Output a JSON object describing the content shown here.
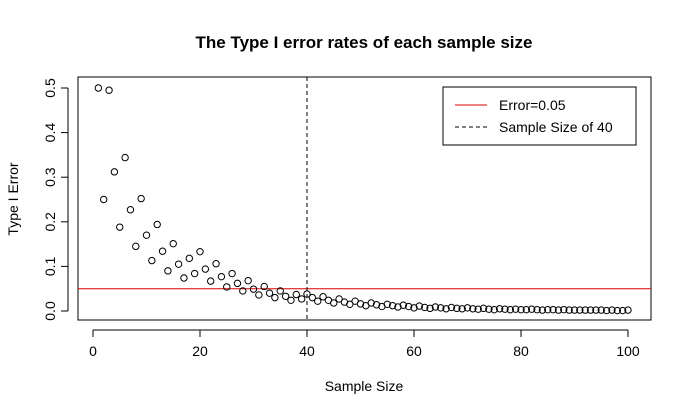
{
  "chart_data": {
    "type": "scatter",
    "title": "The Type I error rates of each sample size",
    "xlabel": "Sample Size",
    "ylabel": "Type I Error",
    "xlim": [
      0,
      100
    ],
    "ylim": [
      0,
      0.5
    ],
    "x_ticks": [
      0,
      20,
      40,
      60,
      80,
      100
    ],
    "y_ticks": [
      0.0,
      0.1,
      0.2,
      0.3,
      0.4,
      0.5
    ],
    "x_tick_labels": [
      "0",
      "20",
      "40",
      "60",
      "80",
      "100"
    ],
    "y_tick_labels": [
      "0.0",
      "0.1",
      "0.2",
      "0.3",
      "0.4",
      "0.5"
    ],
    "point_style": "open-circle",
    "grid": false,
    "series": [
      {
        "x": [
          1,
          2,
          3,
          4,
          5,
          6,
          7,
          8,
          9,
          10,
          11,
          12,
          13,
          14,
          15,
          16,
          17,
          18,
          19,
          20,
          21,
          22,
          23,
          24,
          25,
          26,
          27,
          28,
          29,
          30,
          31,
          32,
          33,
          34,
          35,
          36,
          37,
          38,
          39,
          40,
          41,
          42,
          43,
          44,
          45,
          46,
          47,
          48,
          49,
          50,
          51,
          52,
          53,
          54,
          55,
          56,
          57,
          58,
          59,
          60,
          61,
          62,
          63,
          64,
          65,
          66,
          67,
          68,
          69,
          70,
          71,
          72,
          73,
          74,
          75,
          76,
          77,
          78,
          79,
          80,
          81,
          82,
          83,
          84,
          85,
          86,
          87,
          88,
          89,
          90,
          91,
          92,
          93,
          94,
          95,
          96,
          97,
          98,
          99,
          100
        ],
        "y": [
          0.5,
          0.25,
          0.495,
          0.312,
          0.188,
          0.344,
          0.227,
          0.145,
          0.252,
          0.17,
          0.113,
          0.194,
          0.134,
          0.09,
          0.151,
          0.105,
          0.074,
          0.118,
          0.084,
          0.133,
          0.094,
          0.067,
          0.106,
          0.077,
          0.054,
          0.084,
          0.062,
          0.045,
          0.068,
          0.049,
          0.036,
          0.055,
          0.04,
          0.03,
          0.045,
          0.033,
          0.024,
          0.037,
          0.027,
          0.038,
          0.03,
          0.022,
          0.032,
          0.024,
          0.018,
          0.027,
          0.02,
          0.015,
          0.022,
          0.016,
          0.012,
          0.018,
          0.014,
          0.01,
          0.015,
          0.012,
          0.009,
          0.013,
          0.01,
          0.007,
          0.011,
          0.008,
          0.006,
          0.009,
          0.007,
          0.005,
          0.008,
          0.006,
          0.005,
          0.007,
          0.005,
          0.004,
          0.006,
          0.004,
          0.003,
          0.005,
          0.004,
          0.003,
          0.004,
          0.003,
          0.003,
          0.004,
          0.003,
          0.002,
          0.003,
          0.003,
          0.002,
          0.003,
          0.002,
          0.002,
          0.002,
          0.002,
          0.002,
          0.002,
          0.002,
          0.001,
          0.002,
          0.001,
          0.001,
          0.002
        ]
      }
    ],
    "reference_lines": [
      {
        "orientation": "horizontal",
        "value": 0.05,
        "color": "#dd0000",
        "style": "solid",
        "label": "Error=0.05"
      },
      {
        "orientation": "vertical",
        "value": 40,
        "color": "#000000",
        "style": "dashed",
        "label": "Sample Size of 40"
      }
    ],
    "legend": {
      "placement": "top-right",
      "entries": [
        {
          "label": "Error=0.05",
          "color": "#dd0000",
          "style": "solid"
        },
        {
          "label": "Sample Size of 40",
          "color": "#000000",
          "style": "dashed"
        }
      ]
    }
  }
}
